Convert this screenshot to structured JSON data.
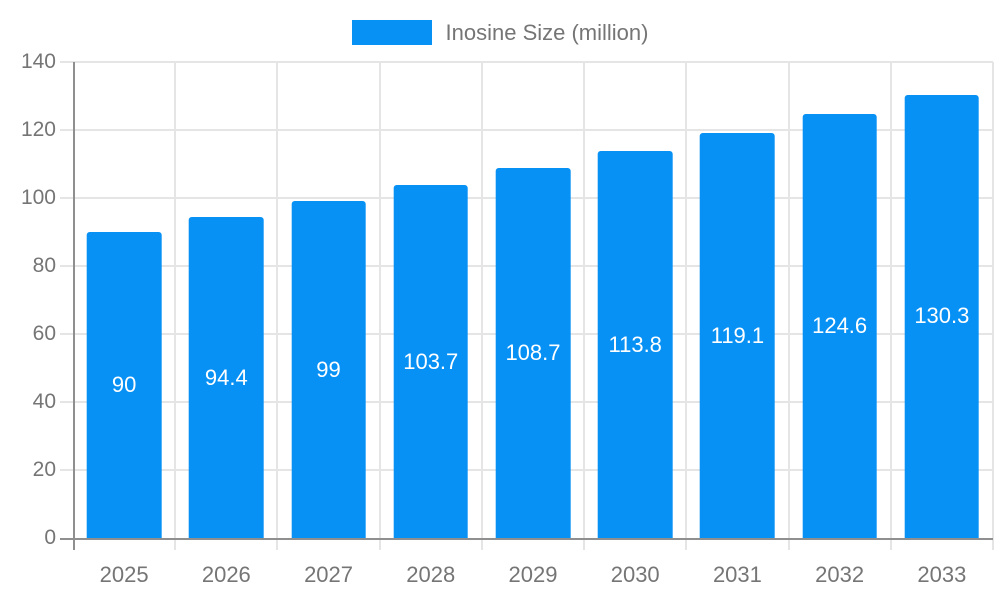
{
  "chart_data": {
    "type": "bar",
    "title": "",
    "legend": "Inosine Size (million)",
    "legend_position": "top-center",
    "categories": [
      "2025",
      "2026",
      "2027",
      "2028",
      "2029",
      "2030",
      "2031",
      "2032",
      "2033"
    ],
    "values": [
      90,
      94.4,
      99,
      103.7,
      108.7,
      113.8,
      119.1,
      124.6,
      130.3
    ],
    "xlabel": "",
    "ylabel": "",
    "ylim": [
      0,
      140
    ],
    "yticks": [
      0,
      20,
      40,
      60,
      80,
      100,
      120,
      140
    ],
    "grid": "horizontal-and-vertical",
    "bar_label_position": "center-of-bar",
    "colors": {
      "bar": "#0891f5",
      "grid": "#e5e5e5",
      "axis": "#8f8f8f",
      "text": "#757575",
      "bar_label": "#ffffff",
      "background": "#ffffff"
    }
  }
}
